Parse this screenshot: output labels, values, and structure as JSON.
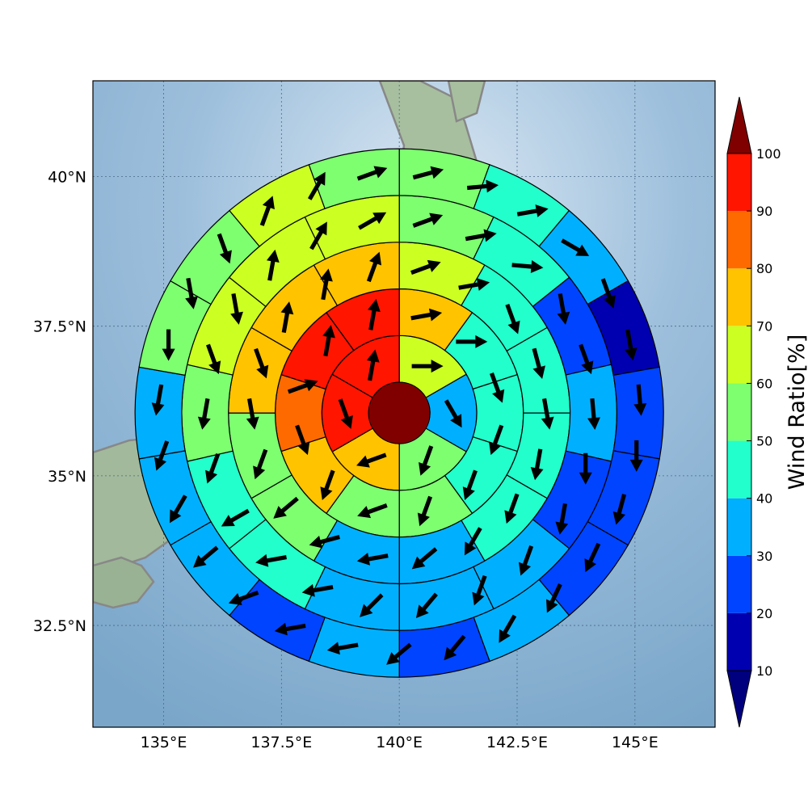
{
  "chart_data": {
    "type": "polar-sector-map",
    "title": "",
    "map": {
      "lon_range": [
        133.5,
        146.7
      ],
      "lat_range": [
        30.8,
        41.6
      ],
      "x_ticks": [
        {
          "value": 135,
          "label": "135°E"
        },
        {
          "value": 137.5,
          "label": "137.5°E"
        },
        {
          "value": 140,
          "label": "140°E"
        },
        {
          "value": 142.5,
          "label": "142.5°E"
        },
        {
          "value": 145,
          "label": "145°E"
        }
      ],
      "y_ticks": [
        {
          "value": 40,
          "label": "40°N"
        },
        {
          "value": 37.5,
          "label": "37.5°N"
        },
        {
          "value": 35,
          "label": "35°N"
        },
        {
          "value": 32.5,
          "label": "32.5°N"
        }
      ],
      "grid": true
    },
    "polar_grid": {
      "center_lon": 140.0,
      "center_lat": 36.05,
      "center_value": 100,
      "rings": [
        {
          "sector_count": 6,
          "values": [
            60,
            35,
            50,
            70,
            90,
            90
          ]
        },
        {
          "sector_count": 10,
          "values": [
            70,
            45,
            45,
            45,
            55,
            50,
            70,
            80,
            90,
            90
          ]
        },
        {
          "sector_count": 12,
          "values": [
            60,
            45,
            45,
            40,
            45,
            35,
            35,
            55,
            55,
            70,
            70,
            70
          ]
        },
        {
          "sector_count": 14,
          "values": [
            55,
            45,
            25,
            35,
            25,
            35,
            30,
            35,
            40,
            45,
            55,
            60,
            60,
            60
          ]
        },
        {
          "sector_count": 18,
          "values": [
            50,
            45,
            35,
            15,
            20,
            20,
            25,
            30,
            25,
            30,
            20,
            35,
            35,
            35,
            50,
            50,
            60,
            50
          ]
        }
      ],
      "arrow_directions_deg": [
        [
          90,
          150,
          200,
          250,
          160,
          10
        ],
        [
          80,
          90,
          160,
          200,
          200,
          200,
          250,
          200,
          160,
          70,
          10,
          10
        ],
        [
          70,
          80,
          160,
          165,
          170,
          190,
          200,
          210,
          230,
          260,
          255,
          230,
          200,
          170,
          160,
          10,
          10,
          20
        ],
        [
          70,
          80,
          95,
          170,
          160,
          175,
          180,
          190,
          200,
          200,
          220,
          225,
          260,
          260,
          240,
          200,
          190,
          160,
          170,
          10,
          30,
          60
        ],
        [
          75,
          85,
          80,
          120,
          160,
          170,
          175,
          180,
          195,
          205,
          205,
          210,
          220,
          230,
          260,
          260,
          250,
          230,
          210,
          200,
          190,
          180,
          170,
          160,
          20,
          30,
          70
        ]
      ]
    },
    "colorbar": {
      "label": "Wind Ratio[%]",
      "ticks": [
        10,
        20,
        30,
        40,
        50,
        60,
        70,
        80,
        90,
        100
      ],
      "range": [
        10,
        100
      ],
      "extend": "both",
      "colors": [
        "#0000b0",
        "#0044ff",
        "#00b0ff",
        "#22ffcc",
        "#7dff70",
        "#ccff22",
        "#ffc300",
        "#ff6a00",
        "#ff1500",
        "#800000"
      ],
      "under_color": "#00007f",
      "over_color": "#800000"
    },
    "colors": {
      "ocean_light": "#c9dcec",
      "ocean_dark": "#7aa6c9",
      "land": "#8fae8a",
      "coastline": "#808080"
    }
  }
}
